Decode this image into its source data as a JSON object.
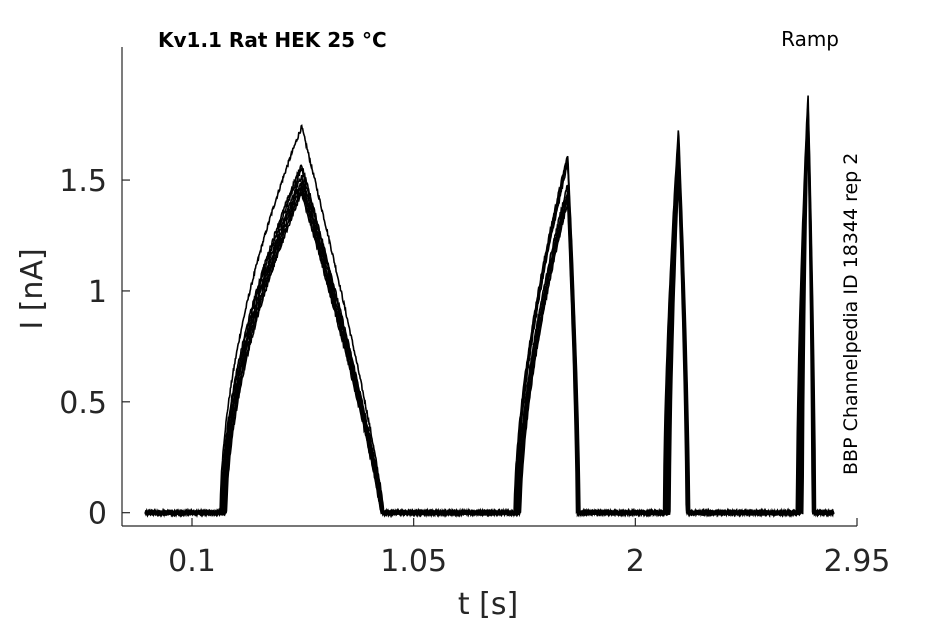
{
  "chart_data": {
    "type": "line",
    "title": "Kv1.1  Rat  HEK  25 °C",
    "protocol_label": "Ramp",
    "side_label": "BBP Channelpedia ID 18344 rep 2",
    "xlabel": "t [s]",
    "ylabel": "I [nA]",
    "xlim": [
      -0.2,
      2.95
    ],
    "ylim": [
      -0.06,
      2.1
    ],
    "xticks": [
      0.1,
      1.05,
      2,
      2.95
    ],
    "xtick_labels": [
      "0.1",
      "1.05",
      "2",
      "2.95"
    ],
    "yticks": [
      0,
      0.5,
      1,
      1.5
    ],
    "ytick_labels": [
      "0",
      "0.5",
      "1",
      "1.5"
    ],
    "grid": false,
    "line_color": "#000000",
    "series": [
      {
        "peaks": [
          1.74,
          1.61,
          1.73,
          1.89
        ]
      },
      {
        "peaks": [
          1.57,
          1.59,
          1.69,
          1.86
        ]
      },
      {
        "peaks": [
          1.55,
          1.57,
          1.66,
          1.84
        ]
      },
      {
        "peaks": [
          1.52,
          1.48,
          1.6,
          1.82
        ]
      },
      {
        "peaks": [
          1.5,
          1.45,
          1.56,
          1.8
        ]
      },
      {
        "peaks": [
          1.48,
          1.43,
          1.55,
          1.79
        ]
      },
      {
        "peaks": [
          1.46,
          1.42,
          1.53,
          1.78
        ]
      },
      {
        "peaks": [
          1.44,
          1.4,
          1.51,
          1.76
        ]
      }
    ],
    "ramps": [
      {
        "t_on": 0.235,
        "t_peak": 0.57,
        "t_off": 0.915
      },
      {
        "t_on": 1.495,
        "t_peak": 1.71,
        "t_off": 1.755
      },
      {
        "t_on": 2.135,
        "t_peak": 2.185,
        "t_off": 2.225
      },
      {
        "t_on": 2.705,
        "t_peak": 2.74,
        "t_off": 2.765
      }
    ],
    "t_start": -0.1,
    "t_end": 2.85
  }
}
